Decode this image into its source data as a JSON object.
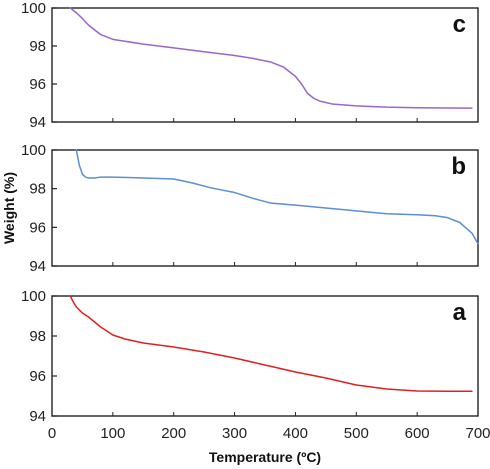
{
  "chart_data": {
    "type": "line",
    "xlabel": "Temperature (ºC)",
    "ylabel": "Weight (%)",
    "xlim": [
      0,
      700
    ],
    "x_ticks": [
      "0",
      "100",
      "200",
      "300",
      "400",
      "500",
      "600",
      "700"
    ],
    "grid": false,
    "panels": [
      {
        "id": "c",
        "label": "c",
        "color": "#9966cc",
        "ylim": [
          94,
          100
        ],
        "y_ticks": [
          "94",
          "96",
          "98",
          "100"
        ],
        "x": [
          30,
          40,
          50,
          60,
          70,
          80,
          100,
          150,
          200,
          250,
          300,
          330,
          360,
          380,
          400,
          410,
          420,
          430,
          440,
          460,
          500,
          550,
          600,
          650,
          690
        ],
        "y": [
          100.0,
          99.75,
          99.45,
          99.1,
          98.85,
          98.6,
          98.35,
          98.1,
          97.9,
          97.7,
          97.5,
          97.35,
          97.15,
          96.9,
          96.4,
          96.0,
          95.5,
          95.25,
          95.1,
          94.95,
          94.85,
          94.78,
          94.75,
          94.74,
          94.73
        ]
      },
      {
        "id": "b",
        "label": "b",
        "color": "#5b8fd6",
        "ylim": [
          94,
          100
        ],
        "y_ticks": [
          "94",
          "96",
          "98",
          "100"
        ],
        "x": [
          40,
          45,
          50,
          55,
          60,
          70,
          80,
          100,
          150,
          200,
          230,
          260,
          300,
          330,
          360,
          400,
          450,
          500,
          550,
          600,
          630,
          650,
          670,
          690,
          700
        ],
        "y": [
          100.0,
          99.2,
          98.75,
          98.6,
          98.55,
          98.55,
          98.6,
          98.6,
          98.55,
          98.5,
          98.3,
          98.05,
          97.8,
          97.5,
          97.25,
          97.15,
          97.0,
          96.85,
          96.7,
          96.65,
          96.6,
          96.5,
          96.25,
          95.7,
          95.15
        ]
      },
      {
        "id": "a",
        "label": "a",
        "color": "#e02020",
        "ylim": [
          94,
          100
        ],
        "y_ticks": [
          "94",
          "96",
          "98",
          "100"
        ],
        "x": [
          30,
          35,
          40,
          50,
          60,
          70,
          80,
          90,
          100,
          120,
          150,
          200,
          250,
          300,
          350,
          400,
          450,
          500,
          550,
          600,
          650,
          690
        ],
        "y": [
          100.0,
          99.7,
          99.45,
          99.15,
          98.95,
          98.7,
          98.45,
          98.25,
          98.05,
          97.85,
          97.65,
          97.45,
          97.2,
          96.9,
          96.55,
          96.2,
          95.9,
          95.55,
          95.35,
          95.25,
          95.24,
          95.24
        ]
      }
    ]
  }
}
